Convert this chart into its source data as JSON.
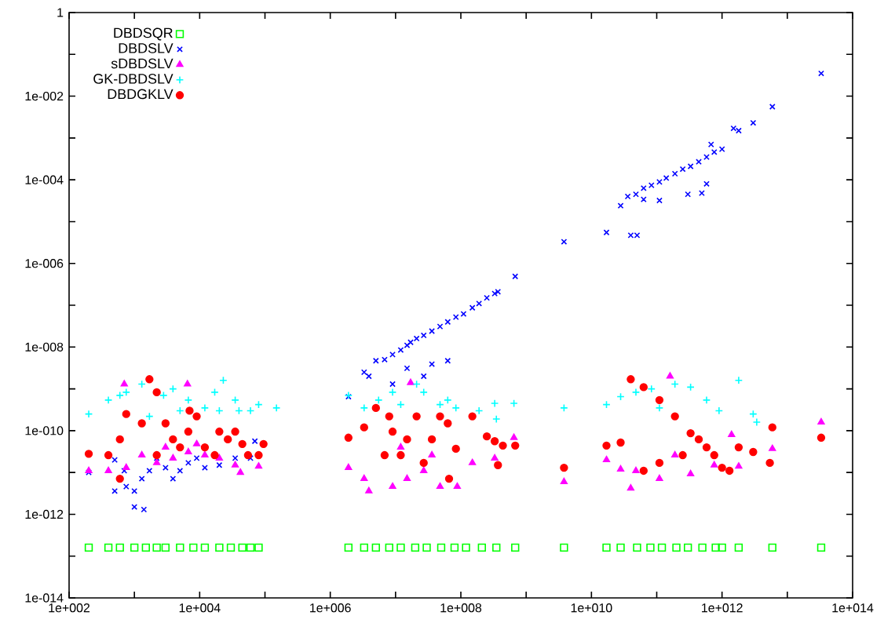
{
  "chart_data": {
    "type": "scatter",
    "log": "xy",
    "legend": "top left",
    "grid": false,
    "xlim": [
      100.0,
      100000000000000.0
    ],
    "ylim": [
      1e-14,
      1
    ],
    "xticks": [
      {
        "value": 100.0,
        "label": "1e+002"
      },
      {
        "value": 1000.0,
        "label": null
      },
      {
        "value": 10000.0,
        "label": "1e+004"
      },
      {
        "value": 100000.0,
        "label": null
      },
      {
        "value": 1000000.0,
        "label": "1e+006"
      },
      {
        "value": 10000000.0,
        "label": null
      },
      {
        "value": 100000000.0,
        "label": "1e+008"
      },
      {
        "value": 1000000000.0,
        "label": null
      },
      {
        "value": 10000000000.0,
        "label": "1e+010"
      },
      {
        "value": 100000000000.0,
        "label": null
      },
      {
        "value": 1000000000000.0,
        "label": "1e+012"
      },
      {
        "value": 10000000000000.0,
        "label": null
      },
      {
        "value": 100000000000000.0,
        "label": "1e+014"
      }
    ],
    "yticks": [
      {
        "value": 1e-14,
        "label": "1e-014"
      },
      {
        "value": 1e-13,
        "label": null
      },
      {
        "value": 1e-12,
        "label": "1e-012"
      },
      {
        "value": 1e-11,
        "label": null
      },
      {
        "value": 1e-10,
        "label": "1e-010"
      },
      {
        "value": 1e-09,
        "label": null
      },
      {
        "value": 1e-08,
        "label": "1e-008"
      },
      {
        "value": 1e-07,
        "label": null
      },
      {
        "value": 1e-06,
        "label": "1e-006"
      },
      {
        "value": 1e-05,
        "label": null
      },
      {
        "value": 0.0001,
        "label": "1e-004"
      },
      {
        "value": 0.001,
        "label": null
      },
      {
        "value": 0.01,
        "label": "1e-002"
      },
      {
        "value": 0.1,
        "label": null
      },
      {
        "value": 1,
        "label": "1"
      }
    ],
    "series": [
      {
        "name": "DBDSQR",
        "color": "#00ff00",
        "marker": "square",
        "x": [
          200.0,
          400.0,
          600.0,
          1000.0,
          1500.0,
          2200.0,
          3000.0,
          5000.0,
          8000.0,
          12000.0,
          20000.0,
          30000.0,
          45000.0,
          60000.0,
          80000.0,
          1900000.0,
          3300000.0,
          5000000.0,
          8000000.0,
          12000000.0,
          20000000.0,
          30000000.0,
          50000000.0,
          80000000.0,
          120000000.0,
          210000000.0,
          350000000.0,
          680000000.0,
          3800000000.0,
          17000000000.0,
          28000000000.0,
          50000000000.0,
          80000000000.0,
          120000000000.0,
          200000000000.0,
          300000000000.0,
          500000000000.0,
          800000000000.0,
          1000000000000.0,
          1800000000000.0,
          5900000000000.0,
          33000000000000.0
        ],
        "values": [
          1.6e-13,
          1.6e-13,
          1.6e-13,
          1.6e-13,
          1.6e-13,
          1.6e-13,
          1.6e-13,
          1.6e-13,
          1.6e-13,
          1.6e-13,
          1.6e-13,
          1.6e-13,
          1.6e-13,
          1.6e-13,
          1.6e-13,
          1.6e-13,
          1.6e-13,
          1.6e-13,
          1.6e-13,
          1.6e-13,
          1.6e-13,
          1.6e-13,
          1.6e-13,
          1.6e-13,
          1.6e-13,
          1.6e-13,
          1.6e-13,
          1.6e-13,
          1.6e-13,
          1.6e-13,
          1.6e-13,
          1.6e-13,
          1.6e-13,
          1.6e-13,
          1.6e-13,
          1.6e-13,
          1.6e-13,
          1.6e-13,
          1.6e-13,
          1.6e-13,
          1.6e-13,
          1.6e-13
        ]
      },
      {
        "name": "DBDSLV",
        "color": "#0000ff",
        "marker": "cross",
        "x": [
          500.0,
          700.0,
          750.0,
          1000.0,
          1300.0,
          1700.0,
          2200.0,
          3000.0,
          3900.0,
          5000.0,
          6700.0,
          9000.0,
          12000.0,
          20000.0,
          35000.0,
          500.0,
          1000.0,
          1400.0,
          60000.0,
          70000.0,
          200.0,
          1900000.0,
          3300000.0,
          3900000.0,
          5000000.0,
          6800000.0,
          9000000.0,
          12000000.0,
          15000000.0,
          17000000.0,
          21000000.0,
          27000000.0,
          36000000.0,
          48000000.0,
          63000000.0,
          84000000.0,
          110000000.0,
          150000000.0,
          190000000.0,
          250000000.0,
          330000000.0,
          370000000.0,
          680000000.0,
          3800000000.0,
          9000000.0,
          15000000.0,
          36000000.0,
          63000000.0,
          27000000.0,
          28000000000.0,
          36000000000.0,
          48000000000.0,
          63000000000.0,
          83000000000.0,
          110000000000.0,
          140000000000.0,
          190000000000.0,
          250000000000.0,
          330000000000.0,
          440000000000.0,
          580000000000.0,
          760000000000.0,
          1000000000000.0,
          680000000000.0,
          1500000000000.0,
          1800000000000.0,
          3000000000000.0,
          5900000000000.0,
          33000000000000.0,
          17000000000.0,
          40000000000.0,
          50000000000.0,
          63000000000.0,
          110000000000.0,
          300000000000.0,
          490000000000.0,
          580000000000.0
        ],
        "values": [
          2e-11,
          1.1e-11,
          4.6e-12,
          3.6e-12,
          7.1e-12,
          1.1e-11,
          2.2e-11,
          1.3e-11,
          7.1e-12,
          1.1e-11,
          1.7e-11,
          2.2e-11,
          1.3e-11,
          1.5e-11,
          2.2e-11,
          3.6e-12,
          1.5e-12,
          1.3e-12,
          2.2e-11,
          5.6e-11,
          1e-11,
          6.5e-10,
          2.5e-09,
          2e-09,
          4.7e-09,
          5e-09,
          6.6e-09,
          8.5e-09,
          1.1e-08,
          1.3e-08,
          1.6e-08,
          1.9e-08,
          2.4e-08,
          3.1e-08,
          4e-08,
          5.2e-08,
          6.2e-08,
          8.7e-08,
          1.1e-07,
          1.5e-07,
          1.9e-07,
          2.1e-07,
          4.9e-07,
          3.3e-06,
          1.3e-09,
          3.1e-09,
          3.9e-09,
          4.7e-09,
          2e-09,
          2.4e-05,
          4e-05,
          4.5e-05,
          6.3e-05,
          7.4e-05,
          8.9e-05,
          0.00011,
          0.00014,
          0.00018,
          0.00021,
          0.00027,
          0.00035,
          0.00046,
          0.00054,
          0.0007,
          0.0017,
          0.0015,
          0.0023,
          0.0056,
          0.035,
          5.5e-06,
          4.7e-06,
          4.7e-06,
          3.4e-05,
          3.2e-05,
          4.5e-05,
          4.8e-05,
          8e-05
        ]
      },
      {
        "name": "sDBDSLV",
        "color": "#ff00ff",
        "marker": "triangle",
        "x": [
          200.0,
          400.0,
          750.0,
          1300.0,
          2200.0,
          3900.0,
          6700.0,
          12000.0,
          20000.0,
          35000.0,
          42000.0,
          80000.0,
          700.0,
          6500.0,
          3000.0,
          9000.0,
          1900000.0,
          3300000.0,
          3900000.0,
          9000000.0,
          15000000.0,
          27000000.0,
          48000000.0,
          88000000.0,
          150000000.0,
          330000000.0,
          650000000.0,
          3800000000.0,
          12000000.0,
          36000000.0,
          17000000.0,
          17000000000.0,
          28000000000.0,
          40000000000.0,
          160000000000.0,
          48000000000.0,
          110000000000.0,
          330000000000.0,
          760000000000.0,
          1400000000000.0,
          1800000000000.0,
          5900000000000.0,
          33000000000000.0,
          190000000000.0
        ],
        "values": [
          1.1e-11,
          1.1e-11,
          1.3e-11,
          2.6e-11,
          1.7e-11,
          2.2e-11,
          3.1e-11,
          2.6e-11,
          2.2e-11,
          1.5e-11,
          1e-11,
          1.4e-11,
          1.3e-09,
          1.3e-09,
          4e-11,
          4.8e-11,
          1.3e-11,
          7.1e-12,
          3.6e-12,
          4.6e-12,
          7.1e-12,
          1.1e-11,
          4.6e-12,
          4.6e-12,
          1.7e-11,
          2.2e-11,
          6.8e-11,
          6e-12,
          4e-11,
          2.6e-11,
          1.4e-09,
          2e-11,
          1.2e-11,
          4.2e-12,
          2e-09,
          1.1e-11,
          7.1e-12,
          9.2e-12,
          1.5e-11,
          8e-11,
          1.4e-11,
          3.7e-11,
          1.6e-10,
          2.6e-11
        ]
      },
      {
        "name": "GK-DBDSLV",
        "color": "#00ffff",
        "marker": "plus",
        "x": [
          200.0,
          400.0,
          600.0,
          750.0,
          1300.0,
          2800.0,
          3900.0,
          6700.0,
          12000.0,
          20000.0,
          35000.0,
          23000.0,
          17000.0,
          40000.0,
          60000.0,
          80000.0,
          150000.0,
          1700.0,
          5000.0,
          1900000.0,
          3300000.0,
          5500000.0,
          9000000.0,
          21000000.0,
          27000000.0,
          48000000.0,
          84000000.0,
          190000000.0,
          330000000.0,
          350000000.0,
          650000000.0,
          3800000000.0,
          12000000.0,
          63000000.0,
          17000000000.0,
          28000000000.0,
          48000000000.0,
          83000000000.0,
          190000000000.0,
          330000000000.0,
          580000000000.0,
          900000000000.0,
          1800000000000.0,
          3000000000000.0,
          3400000000000.0,
          110000000000.0
        ],
        "values": [
          2.5e-10,
          5.4e-10,
          7e-10,
          8.3e-10,
          1.3e-09,
          7e-10,
          1e-09,
          5.4e-10,
          3.5e-10,
          3e-10,
          5.4e-10,
          1.6e-09,
          8.3e-10,
          3e-10,
          3e-10,
          4.2e-10,
          3.5e-10,
          2.2e-10,
          3e-10,
          7e-10,
          3.5e-10,
          5.4e-10,
          8.3e-10,
          1.3e-09,
          8.3e-10,
          4.2e-10,
          3.5e-10,
          3e-10,
          4.5e-10,
          1.9e-10,
          4.5e-10,
          3.5e-10,
          4.2e-10,
          5.4e-10,
          4.2e-10,
          6.5e-10,
          8.3e-10,
          1e-09,
          1.3e-09,
          1.1e-09,
          5.4e-10,
          3e-10,
          1.6e-09,
          2.5e-10,
          1.6e-10,
          3.5e-10
        ]
      },
      {
        "name": "DBDGKLV",
        "color": "#ff0000",
        "marker": "circle",
        "x": [
          200.0,
          400.0,
          600.0,
          750.0,
          1300.0,
          1700.0,
          2200.0,
          3000.0,
          3900.0,
          5000.0,
          6700.0,
          9000.0,
          12000.0,
          17000.0,
          20000.0,
          27000.0,
          35000.0,
          45000.0,
          55000.0,
          80000.0,
          95000.0,
          600.0,
          2200.0,
          7000.0,
          1900000.0,
          3300000.0,
          5000000.0,
          8000000.0,
          9000000.0,
          12000000.0,
          15000000.0,
          21000000.0,
          27000000.0,
          36000000.0,
          48000000.0,
          63000000.0,
          84000000.0,
          150000000.0,
          250000000.0,
          330000000.0,
          440000000.0,
          66000000.0,
          3800000000.0,
          680000000.0,
          370000000.0,
          6800000.0,
          17000000000.0,
          28000000000.0,
          40000000000.0,
          63000000000.0,
          110000000000.0,
          190000000000.0,
          330000000000.0,
          440000000000.0,
          580000000000.0,
          760000000000.0,
          1000000000000.0,
          1300000000000.0,
          1800000000000.0,
          3000000000000.0,
          5400000000000.0,
          5900000000000.0,
          33000000000000.0,
          63000000000.0,
          110000000000.0,
          250000000000.0
        ],
        "values": [
          2.8e-11,
          2.6e-11,
          6.2e-11,
          2.5e-10,
          1.5e-10,
          1.7e-09,
          8.3e-10,
          1.5e-10,
          6.2e-11,
          4e-11,
          9.5e-11,
          2.2e-10,
          4e-11,
          2.6e-11,
          9.5e-11,
          6.2e-11,
          9.5e-11,
          4.8e-11,
          2.6e-11,
          2.6e-11,
          4.8e-11,
          7.1e-12,
          2.6e-11,
          3e-10,
          6.8e-11,
          1.2e-10,
          3.5e-10,
          2.2e-10,
          9.5e-11,
          2.6e-11,
          6.2e-11,
          2.2e-10,
          1.7e-11,
          6.2e-11,
          2.2e-10,
          1.5e-10,
          3.7e-11,
          2.2e-10,
          7.3e-11,
          5.6e-11,
          4.4e-11,
          7.1e-12,
          1.3e-11,
          4.4e-11,
          1.5e-11,
          2.6e-11,
          4.4e-11,
          5.2e-11,
          1.7e-09,
          1.1e-09,
          5.4e-10,
          2.2e-10,
          8.7e-11,
          6.2e-11,
          4e-11,
          2.6e-11,
          1.3e-11,
          1.1e-11,
          4e-11,
          3.1e-11,
          1.7e-11,
          1.2e-10,
          6.8e-11,
          1.1e-11,
          1.7e-11,
          2.6e-11
        ]
      }
    ]
  }
}
